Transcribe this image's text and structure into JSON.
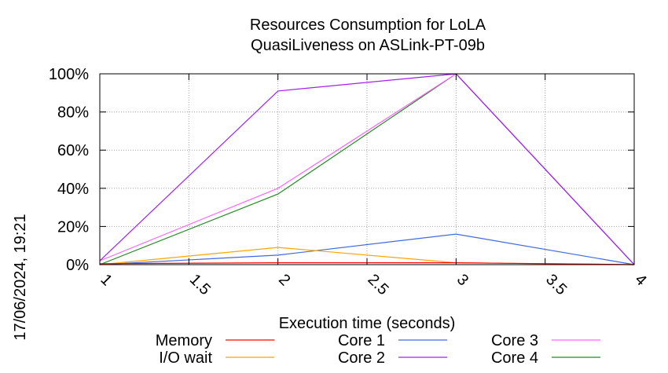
{
  "side_label": "17/06/2024, 19:21",
  "chart_data": {
    "type": "line",
    "title": [
      "Resources Consumption for LoLA",
      "QuasiLiveness on ASLink-PT-09b"
    ],
    "xlabel": "Execution time (seconds)",
    "ylabel": "",
    "xlim": [
      1,
      4
    ],
    "ylim": [
      0,
      100
    ],
    "x_ticks": [
      1,
      1.5,
      2,
      2.5,
      3,
      3.5,
      4
    ],
    "x_tick_labels": [
      "1",
      "1.5",
      "2",
      "2.5",
      "3",
      "3.5",
      "4"
    ],
    "y_ticks": [
      0,
      20,
      40,
      60,
      80,
      100
    ],
    "y_tick_labels": [
      "0%",
      "20%",
      "40%",
      "60%",
      "80%",
      "100%"
    ],
    "grid": true,
    "legend_position": "bottom",
    "series": [
      {
        "name": "Memory",
        "color": "#ff0000",
        "x": [
          1,
          2,
          3,
          4
        ],
        "values": [
          0.5,
          1,
          1,
          0
        ]
      },
      {
        "name": "I/O wait",
        "color": "#ffa500",
        "x": [
          1,
          2,
          3,
          4
        ],
        "values": [
          0,
          9,
          1,
          0
        ]
      },
      {
        "name": "Core 1",
        "color": "#4169e1",
        "x": [
          1,
          2,
          3,
          4
        ],
        "values": [
          0,
          5,
          16,
          0
        ]
      },
      {
        "name": "Core 2",
        "color": "#a020f0",
        "x": [
          1,
          2,
          3,
          4
        ],
        "values": [
          2,
          91,
          100,
          0
        ]
      },
      {
        "name": "Core 3",
        "color": "#ff66ff",
        "x": [
          1,
          2,
          3,
          4
        ],
        "values": [
          2,
          40,
          100,
          0
        ]
      },
      {
        "name": "Core 4",
        "color": "#228b22",
        "x": [
          1,
          2,
          3,
          4
        ],
        "values": [
          0,
          37,
          100,
          0
        ]
      }
    ]
  }
}
